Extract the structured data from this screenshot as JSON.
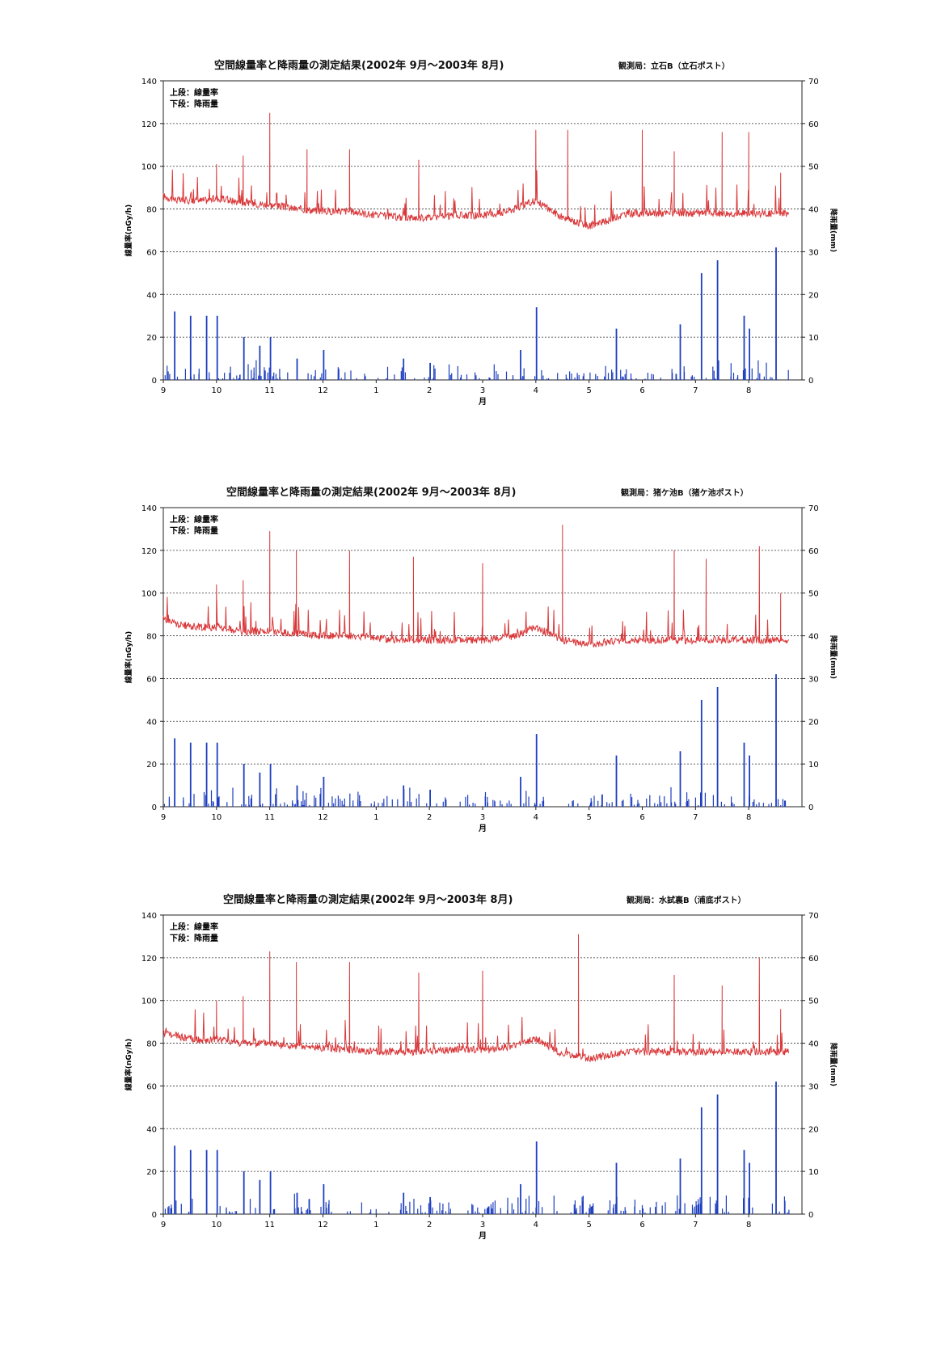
{
  "page": {
    "charts": [
      {
        "title": "空間線量率と降雨量の測定結果(2002年 9月～2003年 8月)",
        "station": "観測局：立石B（立石ポスト）",
        "legend": [
          "上段：線量率",
          "下段：降雨量"
        ],
        "ylabel_left": "線量率(nGy/h)",
        "ylabel_right": "降雨量(mm)",
        "xlabel": "月"
      },
      {
        "title": "空間線量率と降雨量の測定結果(2002年 9月～2003年 8月)",
        "station": "観測局：猪ケ池B（猪ケ池ポスト）",
        "legend": [
          "上段：線量率",
          "下段：降雨量"
        ],
        "ylabel_left": "線量率(nGy/h)",
        "ylabel_right": "降雨量(mm)",
        "xlabel": "月"
      },
      {
        "title": "空間線量率と降雨量の測定結果(2002年 9月～2003年 8月)",
        "station": "観測局：水試裏B（浦底ポスト）",
        "legend": [
          "上段：線量率",
          "下段：降雨量"
        ],
        "ylabel_left": "線量率(nGy/h)",
        "ylabel_right": "降雨量(mm)",
        "xlabel": "月"
      }
    ]
  },
  "chart_data": [
    {
      "type": "line",
      "title": "空間線量率と降雨量の測定結果(2002年 9月～2003年 8月)",
      "xlabel": "月",
      "ylabel": "線量率(nGy/h)",
      "ylabel_right": "降雨量(mm)",
      "x_ticks": [
        "9",
        "10",
        "11",
        "12",
        "1",
        "2",
        "3",
        "4",
        "5",
        "6",
        "7",
        "8"
      ],
      "ylim": [
        0,
        140
      ],
      "ylim_right": [
        0,
        70
      ],
      "y_ticks": [
        0,
        20,
        40,
        60,
        80,
        100,
        120,
        140
      ],
      "y_ticks_right": [
        0,
        10,
        20,
        30,
        40,
        50,
        60,
        70
      ],
      "grid": "horizontal dotted",
      "colors": {
        "dose": "#d9383a",
        "rain": "#1f3fbf"
      },
      "series": [
        {
          "name": "線量率",
          "axis": "left",
          "style": "line",
          "x": [
            0.0,
            0.3,
            0.8,
            1.0,
            1.5,
            2.0,
            2.5,
            3.0,
            3.5,
            4.0,
            4.5,
            5.0,
            5.5,
            6.0,
            6.3,
            6.6,
            7.0,
            7.5,
            8.0,
            8.3,
            8.7
          ],
          "values": [
            86,
            84,
            84,
            85,
            83,
            82,
            80,
            79,
            79,
            77,
            76,
            76,
            77,
            77,
            78,
            80,
            84,
            76,
            72,
            74,
            78
          ],
          "peaks": [
            [
              1.0,
              101
            ],
            [
              1.5,
              105
            ],
            [
              2.0,
              125
            ],
            [
              2.7,
              108
            ],
            [
              3.5,
              108
            ],
            [
              4.8,
              103
            ],
            [
              7.0,
              117
            ],
            [
              7.6,
              117
            ],
            [
              9.0,
              117
            ],
            [
              9.6,
              107
            ],
            [
              10.5,
              116
            ],
            [
              11.0,
              116
            ],
            [
              11.6,
              97
            ]
          ]
        },
        {
          "name": "降雨量",
          "axis": "right",
          "style": "bar",
          "x": [
            0.2,
            0.5,
            0.8,
            1.0,
            1.5,
            1.8,
            2.0,
            2.5,
            3.0,
            4.5,
            5.0,
            6.7,
            7.0,
            8.5,
            9.7,
            10.1,
            10.4,
            10.9,
            11.0,
            11.5
          ],
          "values": [
            16,
            15,
            15,
            15,
            10,
            8,
            10,
            5,
            7,
            5,
            4,
            7,
            17,
            12,
            13,
            25,
            28,
            15,
            12,
            31
          ]
        }
      ]
    },
    {
      "type": "line",
      "title": "空間線量率と降雨量の測定結果(2002年 9月～2003年 8月)",
      "xlabel": "月",
      "ylabel": "線量率(nGy/h)",
      "ylabel_right": "降雨量(mm)",
      "x_ticks": [
        "9",
        "10",
        "11",
        "12",
        "1",
        "2",
        "3",
        "4",
        "5",
        "6",
        "7",
        "8"
      ],
      "ylim": [
        0,
        140
      ],
      "ylim_right": [
        0,
        70
      ],
      "y_ticks": [
        0,
        20,
        40,
        60,
        80,
        100,
        120,
        140
      ],
      "y_ticks_right": [
        0,
        10,
        20,
        30,
        40,
        50,
        60,
        70
      ],
      "grid": "horizontal dotted",
      "colors": {
        "dose": "#d9383a",
        "rain": "#1f3fbf"
      },
      "series": [
        {
          "name": "線量率",
          "axis": "left",
          "style": "line",
          "x": [
            0.0,
            0.3,
            0.8,
            1.0,
            1.5,
            2.0,
            2.5,
            3.0,
            3.5,
            4.0,
            4.5,
            5.0,
            5.5,
            6.0,
            6.3,
            6.6,
            7.0,
            7.5,
            8.0,
            8.3,
            8.7
          ],
          "values": [
            88,
            85,
            84,
            84,
            82,
            82,
            81,
            80,
            80,
            79,
            78,
            78,
            78,
            78,
            79,
            80,
            84,
            78,
            76,
            77,
            78
          ],
          "peaks": [
            [
              1.0,
              104
            ],
            [
              1.5,
              106
            ],
            [
              2.0,
              129
            ],
            [
              2.5,
              120
            ],
            [
              3.5,
              120
            ],
            [
              4.7,
              117
            ],
            [
              6.0,
              114
            ],
            [
              7.5,
              132
            ],
            [
              9.6,
              120
            ],
            [
              10.2,
              116
            ],
            [
              11.2,
              122
            ],
            [
              11.6,
              100
            ]
          ]
        },
        {
          "name": "降雨量",
          "axis": "right",
          "style": "bar",
          "x": [
            0.2,
            0.5,
            0.8,
            1.0,
            1.5,
            1.8,
            2.0,
            2.5,
            3.0,
            4.5,
            5.0,
            6.7,
            7.0,
            8.5,
            9.7,
            10.1,
            10.4,
            10.9,
            11.0,
            11.5
          ],
          "values": [
            16,
            15,
            15,
            15,
            10,
            8,
            10,
            5,
            7,
            5,
            4,
            7,
            17,
            12,
            13,
            25,
            28,
            15,
            12,
            31
          ]
        }
      ]
    },
    {
      "type": "line",
      "title": "空間線量率と降雨量の測定結果(2002年 9月～2003年 8月)",
      "xlabel": "月",
      "ylabel": "線量率(nGy/h)",
      "ylabel_right": "降雨量(mm)",
      "x_ticks": [
        "9",
        "10",
        "11",
        "12",
        "1",
        "2",
        "3",
        "4",
        "5",
        "6",
        "7",
        "8"
      ],
      "ylim": [
        0,
        140
      ],
      "ylim_right": [
        0,
        70
      ],
      "y_ticks": [
        0,
        20,
        40,
        60,
        80,
        100,
        120,
        140
      ],
      "y_ticks_right": [
        0,
        10,
        20,
        30,
        40,
        50,
        60,
        70
      ],
      "grid": "horizontal dotted",
      "colors": {
        "dose": "#d9383a",
        "rain": "#1f3fbf"
      },
      "series": [
        {
          "name": "線量率",
          "axis": "left",
          "style": "line",
          "x": [
            0.0,
            0.3,
            0.8,
            1.0,
            1.5,
            2.0,
            2.5,
            3.0,
            3.5,
            4.0,
            4.5,
            5.0,
            5.5,
            6.0,
            6.3,
            6.6,
            7.0,
            7.5,
            8.0,
            8.3,
            8.7
          ],
          "values": [
            85,
            83,
            81,
            82,
            80,
            80,
            78,
            78,
            77,
            76,
            76,
            76,
            77,
            77,
            77,
            79,
            82,
            75,
            73,
            74,
            76
          ],
          "peaks": [
            [
              1.0,
              100
            ],
            [
              1.5,
              102
            ],
            [
              2.0,
              123
            ],
            [
              2.5,
              118
            ],
            [
              3.5,
              118
            ],
            [
              4.8,
              113
            ],
            [
              6.0,
              114
            ],
            [
              7.8,
              131
            ],
            [
              9.6,
              112
            ],
            [
              10.5,
              107
            ],
            [
              11.2,
              120
            ],
            [
              11.6,
              96
            ]
          ]
        },
        {
          "name": "降雨量",
          "axis": "right",
          "style": "bar",
          "x": [
            0.2,
            0.5,
            0.8,
            1.0,
            1.5,
            1.8,
            2.0,
            2.5,
            3.0,
            4.5,
            5.0,
            6.7,
            7.0,
            8.5,
            9.7,
            10.1,
            10.4,
            10.9,
            11.0,
            11.5
          ],
          "values": [
            16,
            15,
            15,
            15,
            10,
            8,
            10,
            5,
            7,
            5,
            4,
            7,
            17,
            12,
            13,
            25,
            28,
            15,
            12,
            31
          ]
        }
      ]
    }
  ]
}
